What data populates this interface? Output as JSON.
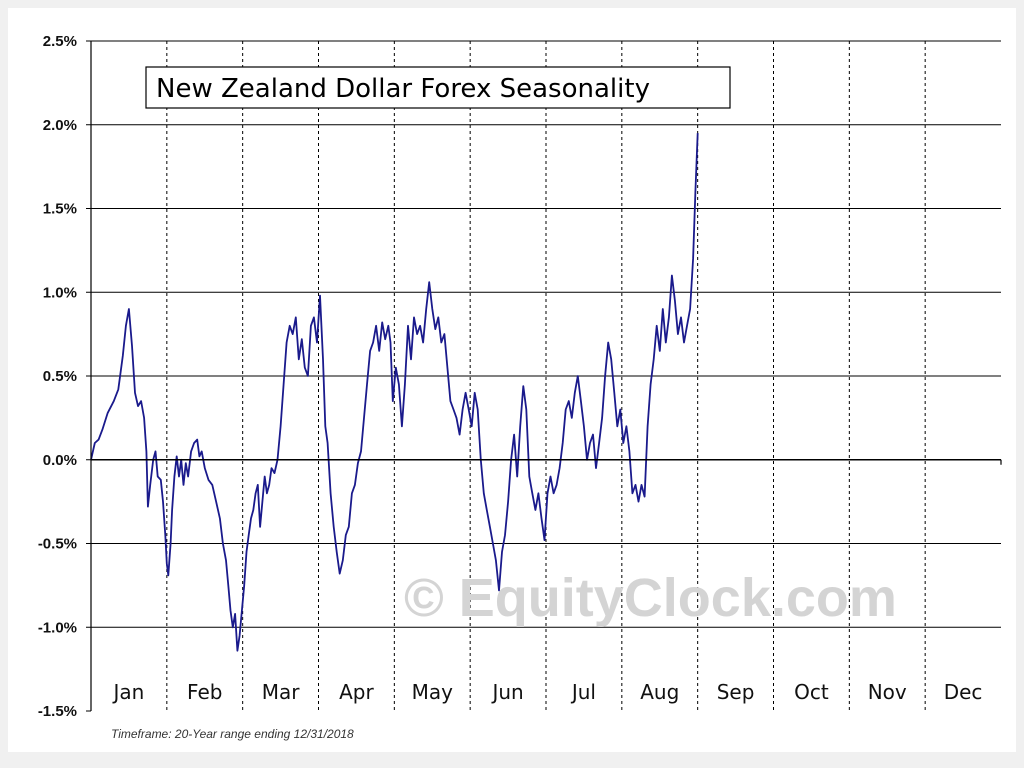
{
  "chart_data": {
    "type": "line",
    "title": "New Zealand Dollar Forex Seasonality",
    "footnote": "Timeframe: 20-Year range ending 12/31/2018",
    "watermark": "© EquityClock.com",
    "xlabel": "",
    "ylabel": "",
    "x_categories": [
      "Jan",
      "Feb",
      "Mar",
      "Apr",
      "May",
      "Jun",
      "Jul",
      "Aug",
      "Sep",
      "Oct",
      "Nov",
      "Dec"
    ],
    "ylim": [
      -1.5,
      2.5
    ],
    "y_ticks": [
      {
        "value": 2.5,
        "label": "2.5%"
      },
      {
        "value": 2.0,
        "label": "2.0%"
      },
      {
        "value": 1.5,
        "label": "1.5%"
      },
      {
        "value": 1.0,
        "label": "1.0%"
      },
      {
        "value": 0.5,
        "label": "0.5%"
      },
      {
        "value": 0.0,
        "label": "0.0%"
      },
      {
        "value": -0.5,
        "label": "-0.5%"
      },
      {
        "value": -1.0,
        "label": "-1.0%"
      },
      {
        "value": -1.5,
        "label": "-1.5%"
      }
    ],
    "grid": "horizontal solid, vertical dashed at month boundaries",
    "line_color": "#1a1a8c",
    "series": [
      {
        "name": "",
        "points": [
          [
            0.0,
            0.0
          ],
          [
            0.05,
            0.1
          ],
          [
            0.1,
            0.12
          ],
          [
            0.15,
            0.18
          ],
          [
            0.22,
            0.28
          ],
          [
            0.3,
            0.35
          ],
          [
            0.36,
            0.42
          ],
          [
            0.42,
            0.62
          ],
          [
            0.46,
            0.8
          ],
          [
            0.5,
            0.9
          ],
          [
            0.54,
            0.68
          ],
          [
            0.58,
            0.4
          ],
          [
            0.62,
            0.32
          ],
          [
            0.66,
            0.35
          ],
          [
            0.7,
            0.25
          ],
          [
            0.73,
            0.05
          ],
          [
            0.75,
            -0.28
          ],
          [
            0.78,
            -0.15
          ],
          [
            0.82,
            0.0
          ],
          [
            0.85,
            0.05
          ],
          [
            0.88,
            -0.1
          ],
          [
            0.92,
            -0.12
          ],
          [
            0.95,
            -0.25
          ],
          [
            0.98,
            -0.45
          ],
          [
            1.0,
            -0.62
          ],
          [
            1.02,
            -0.69
          ],
          [
            1.05,
            -0.5
          ],
          [
            1.07,
            -0.3
          ],
          [
            1.1,
            -0.1
          ],
          [
            1.13,
            0.02
          ],
          [
            1.16,
            -0.1
          ],
          [
            1.19,
            0.0
          ],
          [
            1.22,
            -0.15
          ],
          [
            1.25,
            -0.02
          ],
          [
            1.28,
            -0.1
          ],
          [
            1.32,
            0.05
          ],
          [
            1.36,
            0.1
          ],
          [
            1.4,
            0.12
          ],
          [
            1.43,
            0.02
          ],
          [
            1.46,
            0.05
          ],
          [
            1.5,
            -0.05
          ],
          [
            1.55,
            -0.12
          ],
          [
            1.6,
            -0.15
          ],
          [
            1.65,
            -0.25
          ],
          [
            1.7,
            -0.35
          ],
          [
            1.74,
            -0.5
          ],
          [
            1.78,
            -0.6
          ],
          [
            1.81,
            -0.75
          ],
          [
            1.84,
            -0.9
          ],
          [
            1.87,
            -1.0
          ],
          [
            1.9,
            -0.92
          ],
          [
            1.93,
            -1.14
          ],
          [
            1.96,
            -1.05
          ],
          [
            1.99,
            -0.9
          ],
          [
            2.02,
            -0.75
          ],
          [
            2.05,
            -0.55
          ],
          [
            2.08,
            -0.45
          ],
          [
            2.11,
            -0.35
          ],
          [
            2.14,
            -0.3
          ],
          [
            2.17,
            -0.2
          ],
          [
            2.2,
            -0.15
          ],
          [
            2.23,
            -0.4
          ],
          [
            2.26,
            -0.25
          ],
          [
            2.29,
            -0.1
          ],
          [
            2.32,
            -0.2
          ],
          [
            2.35,
            -0.15
          ],
          [
            2.38,
            -0.05
          ],
          [
            2.42,
            -0.08
          ],
          [
            2.46,
            0.0
          ],
          [
            2.5,
            0.2
          ],
          [
            2.54,
            0.45
          ],
          [
            2.58,
            0.7
          ],
          [
            2.62,
            0.8
          ],
          [
            2.66,
            0.75
          ],
          [
            2.7,
            0.85
          ],
          [
            2.74,
            0.6
          ],
          [
            2.78,
            0.72
          ],
          [
            2.82,
            0.55
          ],
          [
            2.86,
            0.5
          ],
          [
            2.9,
            0.8
          ],
          [
            2.94,
            0.85
          ],
          [
            2.98,
            0.7
          ],
          [
            3.02,
            0.98
          ],
          [
            3.06,
            0.6
          ],
          [
            3.09,
            0.2
          ],
          [
            3.12,
            0.1
          ],
          [
            3.16,
            -0.2
          ],
          [
            3.2,
            -0.4
          ],
          [
            3.24,
            -0.55
          ],
          [
            3.28,
            -0.68
          ],
          [
            3.32,
            -0.6
          ],
          [
            3.36,
            -0.45
          ],
          [
            3.4,
            -0.4
          ],
          [
            3.44,
            -0.2
          ],
          [
            3.48,
            -0.15
          ],
          [
            3.52,
            -0.02
          ],
          [
            3.56,
            0.05
          ],
          [
            3.6,
            0.25
          ],
          [
            3.64,
            0.45
          ],
          [
            3.68,
            0.65
          ],
          [
            3.72,
            0.7
          ],
          [
            3.76,
            0.8
          ],
          [
            3.8,
            0.65
          ],
          [
            3.84,
            0.82
          ],
          [
            3.88,
            0.72
          ],
          [
            3.92,
            0.8
          ],
          [
            3.95,
            0.7
          ],
          [
            3.98,
            0.35
          ],
          [
            4.02,
            0.55
          ],
          [
            4.06,
            0.45
          ],
          [
            4.1,
            0.2
          ],
          [
            4.14,
            0.45
          ],
          [
            4.18,
            0.8
          ],
          [
            4.22,
            0.6
          ],
          [
            4.26,
            0.85
          ],
          [
            4.3,
            0.75
          ],
          [
            4.34,
            0.8
          ],
          [
            4.38,
            0.7
          ],
          [
            4.42,
            0.9
          ],
          [
            4.46,
            1.06
          ],
          [
            4.5,
            0.9
          ],
          [
            4.54,
            0.78
          ],
          [
            4.58,
            0.85
          ],
          [
            4.62,
            0.7
          ],
          [
            4.66,
            0.75
          ],
          [
            4.7,
            0.55
          ],
          [
            4.74,
            0.35
          ],
          [
            4.78,
            0.3
          ],
          [
            4.82,
            0.25
          ],
          [
            4.86,
            0.15
          ],
          [
            4.9,
            0.3
          ],
          [
            4.94,
            0.4
          ],
          [
            4.98,
            0.3
          ],
          [
            5.02,
            0.2
          ],
          [
            5.06,
            0.4
          ],
          [
            5.1,
            0.3
          ],
          [
            5.14,
            0.0
          ],
          [
            5.18,
            -0.2
          ],
          [
            5.22,
            -0.3
          ],
          [
            5.26,
            -0.4
          ],
          [
            5.3,
            -0.5
          ],
          [
            5.34,
            -0.6
          ],
          [
            5.38,
            -0.78
          ],
          [
            5.42,
            -0.55
          ],
          [
            5.46,
            -0.45
          ],
          [
            5.5,
            -0.25
          ],
          [
            5.54,
            0.0
          ],
          [
            5.58,
            0.15
          ],
          [
            5.62,
            -0.1
          ],
          [
            5.66,
            0.2
          ],
          [
            5.7,
            0.44
          ],
          [
            5.74,
            0.3
          ],
          [
            5.78,
            -0.1
          ],
          [
            5.82,
            -0.2
          ],
          [
            5.86,
            -0.3
          ],
          [
            5.9,
            -0.2
          ],
          [
            5.94,
            -0.35
          ],
          [
            5.98,
            -0.48
          ],
          [
            6.02,
            -0.2
          ],
          [
            6.06,
            -0.1
          ],
          [
            6.1,
            -0.2
          ],
          [
            6.14,
            -0.15
          ],
          [
            6.18,
            -0.05
          ],
          [
            6.22,
            0.1
          ],
          [
            6.26,
            0.3
          ],
          [
            6.3,
            0.35
          ],
          [
            6.34,
            0.25
          ],
          [
            6.38,
            0.4
          ],
          [
            6.42,
            0.5
          ],
          [
            6.46,
            0.35
          ],
          [
            6.5,
            0.2
          ],
          [
            6.54,
            0.0
          ],
          [
            6.58,
            0.1
          ],
          [
            6.62,
            0.15
          ],
          [
            6.66,
            -0.05
          ],
          [
            6.7,
            0.1
          ],
          [
            6.74,
            0.25
          ],
          [
            6.78,
            0.5
          ],
          [
            6.82,
            0.7
          ],
          [
            6.86,
            0.6
          ],
          [
            6.9,
            0.4
          ],
          [
            6.94,
            0.2
          ],
          [
            6.98,
            0.3
          ],
          [
            7.02,
            0.1
          ],
          [
            7.06,
            0.2
          ],
          [
            7.1,
            0.05
          ],
          [
            7.14,
            -0.2
          ],
          [
            7.18,
            -0.15
          ],
          [
            7.22,
            -0.25
          ],
          [
            7.26,
            -0.15
          ],
          [
            7.3,
            -0.22
          ],
          [
            7.34,
            0.2
          ],
          [
            7.38,
            0.45
          ],
          [
            7.42,
            0.6
          ],
          [
            7.46,
            0.8
          ],
          [
            7.5,
            0.65
          ],
          [
            7.54,
            0.9
          ],
          [
            7.58,
            0.7
          ],
          [
            7.62,
            0.85
          ],
          [
            7.66,
            1.1
          ],
          [
            7.7,
            0.95
          ],
          [
            7.74,
            0.75
          ],
          [
            7.78,
            0.85
          ],
          [
            7.82,
            0.7
          ],
          [
            7.86,
            0.8
          ],
          [
            7.9,
            0.9
          ],
          [
            7.94,
            1.2
          ],
          [
            7.97,
            1.6
          ],
          [
            8.0,
            1.95
          ]
        ]
      }
    ]
  }
}
